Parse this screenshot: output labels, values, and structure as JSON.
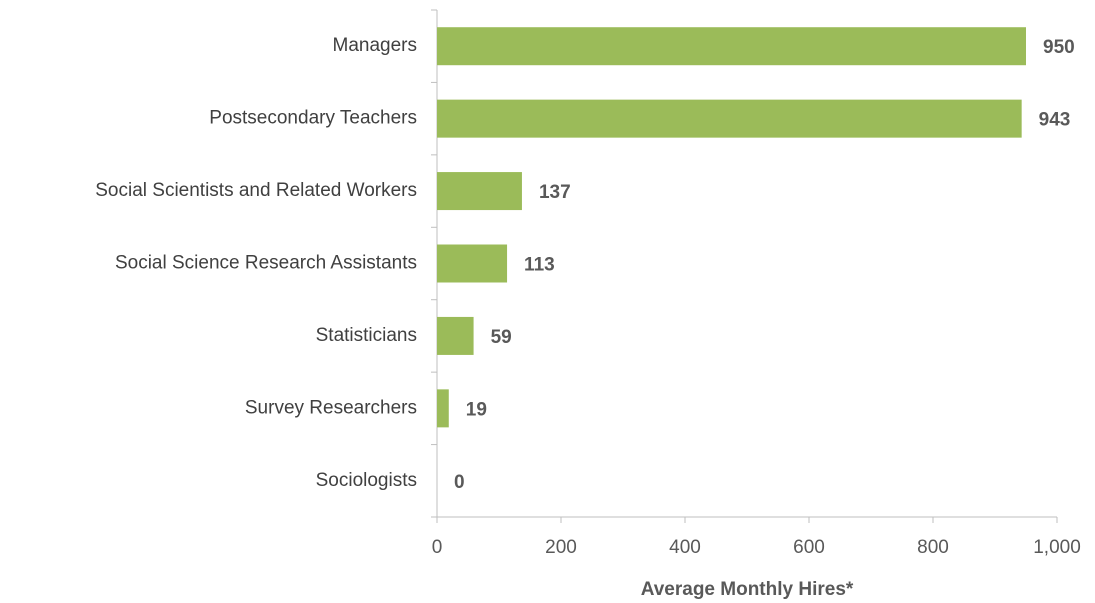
{
  "chart_data": {
    "type": "bar",
    "orientation": "horizontal",
    "categories": [
      "Managers",
      "Postsecondary Teachers",
      "Social Scientists and Related Workers",
      "Social Science Research Assistants",
      "Statisticians",
      "Survey Researchers",
      "Sociologists"
    ],
    "values": [
      950,
      943,
      137,
      113,
      59,
      19,
      0
    ],
    "color": "#9bbb59",
    "xlabel": "Average Monthly Hires*",
    "xlim": [
      0,
      1000
    ],
    "xticks": [
      0,
      200,
      400,
      600,
      800,
      {
        "value": 1000,
        "label": "1,000"
      }
    ],
    "grid": false
  }
}
